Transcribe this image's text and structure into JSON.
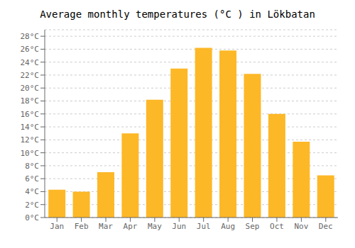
{
  "chart_data": {
    "type": "bar",
    "title": "Average monthly temperatures (°C ) in Lökbatan",
    "categories": [
      "Jan",
      "Feb",
      "Mar",
      "Apr",
      "May",
      "Jun",
      "Jul",
      "Aug",
      "Sep",
      "Oct",
      "Nov",
      "Dec"
    ],
    "values": [
      4.3,
      4.0,
      7.0,
      13.0,
      18.2,
      23.0,
      26.2,
      25.8,
      22.2,
      16.0,
      11.7,
      6.5
    ],
    "color": "#FDB827",
    "ylim": [
      0,
      29
    ],
    "yticks": [
      {
        "value": 0,
        "label": "0°C"
      },
      {
        "value": 2,
        "label": "2°C"
      },
      {
        "value": 4,
        "label": "4°C"
      },
      {
        "value": 6,
        "label": "6°C"
      },
      {
        "value": 8,
        "label": "8°C"
      },
      {
        "value": 10,
        "label": "10°C"
      },
      {
        "value": 12,
        "label": "12°C"
      },
      {
        "value": 14,
        "label": "14°C"
      },
      {
        "value": 16,
        "label": "16°C"
      },
      {
        "value": 18,
        "label": "18°C"
      },
      {
        "value": 20,
        "label": "20°C"
      },
      {
        "value": 22,
        "label": "22°C"
      },
      {
        "value": 24,
        "label": "24°C"
      },
      {
        "value": 26,
        "label": "26°C"
      },
      {
        "value": 28,
        "label": "28°C"
      }
    ],
    "grid": true
  }
}
